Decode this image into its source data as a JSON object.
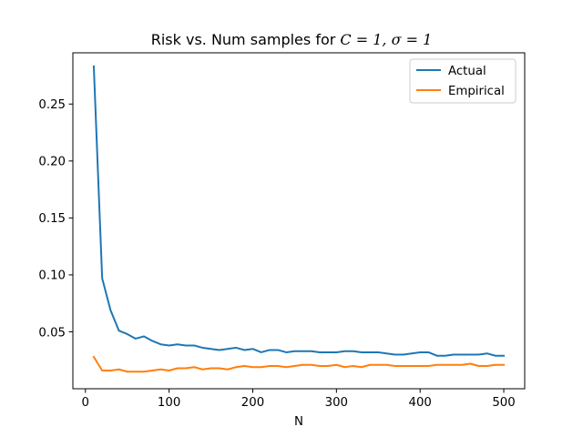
{
  "chart_data": {
    "type": "line",
    "title_prefix": "Risk vs. Num samples for ",
    "title_math": "C = 1, σ = 1",
    "xlabel": "N",
    "ylabel": "",
    "xlim": [
      -15,
      525
    ],
    "ylim": [
      0.0,
      0.295
    ],
    "xticks": [
      0,
      100,
      200,
      300,
      400,
      500
    ],
    "xtick_labels": [
      "0",
      "100",
      "200",
      "300",
      "400",
      "500"
    ],
    "yticks": [
      0.05,
      0.1,
      0.15,
      0.2,
      0.25
    ],
    "ytick_labels": [
      "0.05",
      "0.10",
      "0.15",
      "0.20",
      "0.25"
    ],
    "grid": false,
    "legend_placement": "top-right",
    "x": [
      10,
      20,
      30,
      40,
      50,
      60,
      70,
      80,
      90,
      100,
      110,
      120,
      130,
      140,
      150,
      160,
      170,
      180,
      190,
      200,
      210,
      220,
      230,
      240,
      250,
      260,
      270,
      280,
      290,
      300,
      310,
      320,
      330,
      340,
      350,
      360,
      370,
      380,
      390,
      400,
      410,
      420,
      430,
      440,
      450,
      460,
      470,
      480,
      490,
      500
    ],
    "series": [
      {
        "name": "Actual",
        "color": "#1f77b4",
        "values": [
          0.283,
          0.097,
          0.069,
          0.051,
          0.048,
          0.044,
          0.046,
          0.042,
          0.039,
          0.038,
          0.039,
          0.038,
          0.038,
          0.036,
          0.035,
          0.034,
          0.035,
          0.036,
          0.034,
          0.035,
          0.032,
          0.034,
          0.034,
          0.032,
          0.033,
          0.033,
          0.033,
          0.032,
          0.032,
          0.032,
          0.033,
          0.033,
          0.032,
          0.032,
          0.032,
          0.031,
          0.03,
          0.03,
          0.031,
          0.032,
          0.032,
          0.029,
          0.029,
          0.03,
          0.03,
          0.03,
          0.03,
          0.031,
          0.029,
          0.029
        ]
      },
      {
        "name": "Empirical",
        "color": "#ff7f0e",
        "values": [
          0.028,
          0.016,
          0.016,
          0.017,
          0.015,
          0.015,
          0.015,
          0.016,
          0.017,
          0.016,
          0.018,
          0.018,
          0.019,
          0.017,
          0.018,
          0.018,
          0.017,
          0.019,
          0.02,
          0.019,
          0.019,
          0.02,
          0.02,
          0.019,
          0.02,
          0.021,
          0.021,
          0.02,
          0.02,
          0.021,
          0.019,
          0.02,
          0.019,
          0.021,
          0.021,
          0.021,
          0.02,
          0.02,
          0.02,
          0.02,
          0.02,
          0.021,
          0.021,
          0.021,
          0.021,
          0.022,
          0.02,
          0.02,
          0.021,
          0.021
        ]
      }
    ]
  }
}
